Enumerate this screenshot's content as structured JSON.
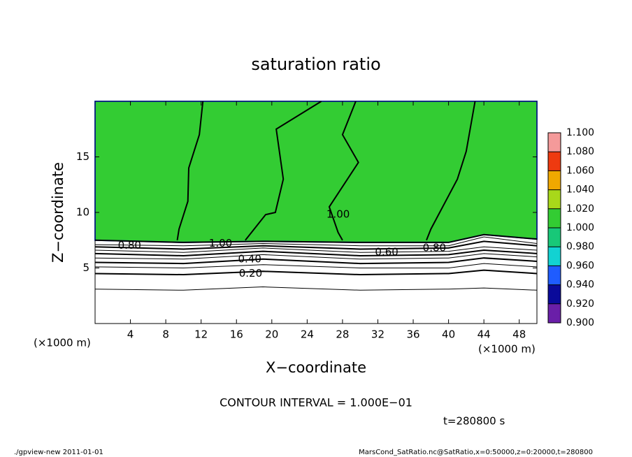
{
  "chart_data": {
    "type": "contour",
    "title": "saturation ratio",
    "xlabel": "X−coordinate",
    "ylabel": "Z−coordinate",
    "x_unit_label": "(×1000 m)",
    "y_unit_label": "(×1000 m)",
    "contour_interval_text": "CONTOUR INTERVAL = 1.000E−01",
    "time_text": "t=280800 s",
    "footer_left": "./gpview-new   2011-01-01",
    "footer_right": "MarsCond_SatRatio.nc@SatRatio,x=0:50000,z=0:20000,t=280800",
    "xlim": [
      0,
      50
    ],
    "xticks": [
      4,
      8,
      12,
      16,
      20,
      24,
      28,
      32,
      36,
      40,
      44,
      48
    ],
    "ylim": [
      0,
      20
    ],
    "yticks": [
      5,
      10,
      15
    ],
    "colorbar": {
      "levels": [
        {
          "value": 0.9,
          "label": "0.900"
        },
        {
          "value": 0.92,
          "label": "0.920"
        },
        {
          "value": 0.94,
          "label": "0.940"
        },
        {
          "value": 0.96,
          "label": "0.960"
        },
        {
          "value": 0.98,
          "label": "0.980"
        },
        {
          "value": 1.0,
          "label": "1.000"
        },
        {
          "value": 1.02,
          "label": "1.020"
        },
        {
          "value": 1.04,
          "label": "1.040"
        },
        {
          "value": 1.06,
          "label": "1.060"
        },
        {
          "value": 1.08,
          "label": "1.080"
        },
        {
          "value": 1.1,
          "label": "1.100"
        }
      ],
      "colors": [
        "#6a1fa8",
        "#0a0a9a",
        "#1f5cff",
        "#12d2d2",
        "#18c878",
        "#33cc33",
        "#a8d81a",
        "#f0a800",
        "#ee3a10",
        "#f49a9a"
      ]
    },
    "fill": {
      "level": 1.0,
      "x": [
        0,
        10,
        19,
        30,
        40,
        44,
        50
      ],
      "z": [
        7.5,
        7.3,
        7.4,
        7.3,
        7.3,
        8.0,
        7.6
      ]
    },
    "contours": [
      {
        "level": 0.1,
        "x": [
          0,
          10,
          19,
          30,
          40,
          44,
          50
        ],
        "z": [
          3.1,
          3.0,
          3.3,
          3.0,
          3.1,
          3.2,
          3.0
        ]
      },
      {
        "level": 0.2,
        "x": [
          0,
          10,
          19,
          30,
          40,
          44,
          50
        ],
        "z": [
          4.5,
          4.4,
          4.7,
          4.4,
          4.5,
          4.8,
          4.5
        ]
      },
      {
        "level": 0.3,
        "x": [
          0,
          10,
          19,
          30,
          40,
          44,
          50
        ],
        "z": [
          5.1,
          5.0,
          5.3,
          5.0,
          5.0,
          5.4,
          5.1
        ]
      },
      {
        "level": 0.4,
        "x": [
          0,
          10,
          19,
          30,
          40,
          44,
          50
        ],
        "z": [
          5.5,
          5.4,
          5.8,
          5.4,
          5.5,
          5.9,
          5.6
        ]
      },
      {
        "level": 0.5,
        "x": [
          0,
          10,
          19,
          30,
          40,
          44,
          50
        ],
        "z": [
          5.9,
          5.8,
          6.2,
          5.8,
          5.9,
          6.3,
          6.0
        ]
      },
      {
        "level": 0.6,
        "x": [
          0,
          10,
          19,
          30,
          40,
          44,
          50
        ],
        "z": [
          6.3,
          6.1,
          6.5,
          6.1,
          6.2,
          6.6,
          6.3
        ]
      },
      {
        "level": 0.7,
        "x": [
          0,
          10,
          19,
          30,
          40,
          44,
          50
        ],
        "z": [
          6.6,
          6.4,
          6.8,
          6.4,
          6.5,
          6.9,
          6.6
        ]
      },
      {
        "level": 0.8,
        "x": [
          0,
          10,
          19,
          30,
          40,
          44,
          50
        ],
        "z": [
          6.9,
          6.7,
          7.0,
          6.7,
          6.8,
          7.4,
          7.0
        ]
      },
      {
        "level": 0.9,
        "x": [
          0,
          10,
          19,
          30,
          40,
          44,
          50
        ],
        "z": [
          7.1,
          7.0,
          7.2,
          7.0,
          7.0,
          7.8,
          7.2
        ]
      },
      {
        "level": 1.0,
        "x": [
          0,
          10,
          19,
          30,
          40,
          44,
          50
        ],
        "z": [
          7.5,
          7.3,
          7.4,
          7.3,
          7.3,
          8.0,
          7.6
        ]
      },
      {
        "level": 1.0,
        "x": [
          12.2,
          11.8,
          10.6,
          10.5,
          9.5,
          9.3
        ],
        "z": [
          20,
          17,
          14,
          11,
          8.5,
          7.5
        ]
      },
      {
        "level": 1.0,
        "x": [
          25.6,
          20.5,
          21.3,
          20.4,
          19.3,
          18,
          17
        ],
        "z": [
          20,
          17.5,
          13,
          10,
          9.8,
          8.5,
          7.5
        ]
      },
      {
        "level": 1.0,
        "x": [
          29.5,
          28,
          29.8,
          26.5,
          27.5,
          28
        ],
        "z": [
          20,
          17,
          14.5,
          10.5,
          8.2,
          7.5
        ]
      },
      {
        "level": 1.0,
        "x": [
          43,
          42,
          41,
          39,
          38,
          37.5
        ],
        "z": [
          20,
          15.5,
          13,
          10,
          8.5,
          7.5
        ]
      }
    ],
    "contour_labels": [
      {
        "text": "0.80",
        "x": 3.9,
        "z": 7.0
      },
      {
        "text": "1.00",
        "x": 14.2,
        "z": 7.2
      },
      {
        "text": "0.40",
        "x": 17.5,
        "z": 5.8
      },
      {
        "text": "0.20",
        "x": 17.6,
        "z": 4.5
      },
      {
        "text": "0.60",
        "x": 33,
        "z": 6.4
      },
      {
        "text": "0.80",
        "x": 38.4,
        "z": 6.8
      },
      {
        "text": "1.00",
        "x": 27.5,
        "z": 9.8
      }
    ]
  }
}
